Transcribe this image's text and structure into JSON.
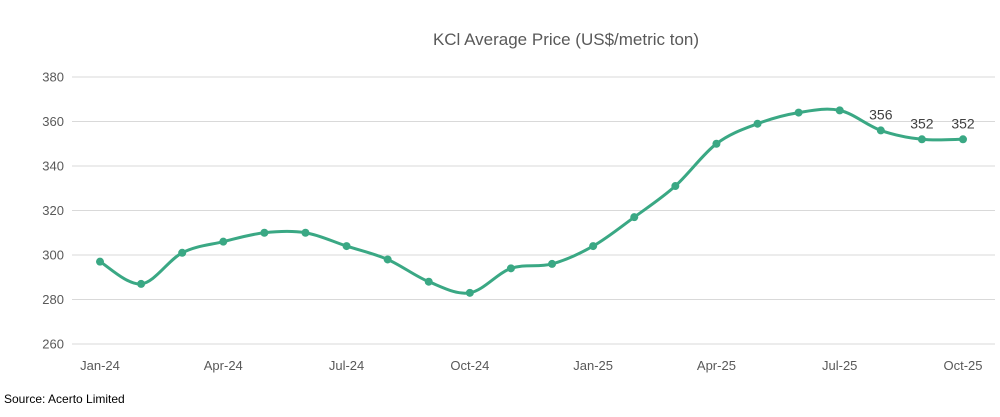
{
  "chart_data": {
    "type": "line",
    "title": "KCl Average Price (US$/metric ton)",
    "xlabel": "",
    "ylabel": "",
    "categories": [
      "Jan-24",
      "Feb-24",
      "Mar-24",
      "Apr-24",
      "May-24",
      "Jun-24",
      "Jul-24",
      "Aug-24",
      "Sep-24",
      "Oct-24",
      "Nov-24",
      "Dec-24",
      "Jan-25",
      "Feb-25",
      "Mar-25",
      "Apr-25",
      "May-25",
      "Jun-25",
      "Jul-25",
      "Aug-25",
      "Sep-25",
      "Oct-25"
    ],
    "x_tick_labels": [
      "Jan-24",
      "Apr-24",
      "Jul-24",
      "Oct-24",
      "Jan-25",
      "Apr-25",
      "Jul-25",
      "Oct-25"
    ],
    "series": [
      {
        "name": "KCl Average Price",
        "values": [
          297,
          287,
          301,
          306,
          310,
          310,
          304,
          298,
          288,
          283,
          294,
          296,
          304,
          317,
          331,
          350,
          359,
          364,
          365,
          356,
          352,
          352
        ]
      }
    ],
    "data_labels": [
      {
        "index": 19,
        "text": "356"
      },
      {
        "index": 20,
        "text": "352"
      },
      {
        "index": 21,
        "text": "352"
      }
    ],
    "ylim": [
      260,
      380
    ],
    "y_ticks": [
      260,
      280,
      300,
      320,
      340,
      360,
      380
    ],
    "grid": true,
    "line_color": "#3aa884",
    "grid_color": "#d9d9d9"
  },
  "source": "Source: Acerto Limited"
}
